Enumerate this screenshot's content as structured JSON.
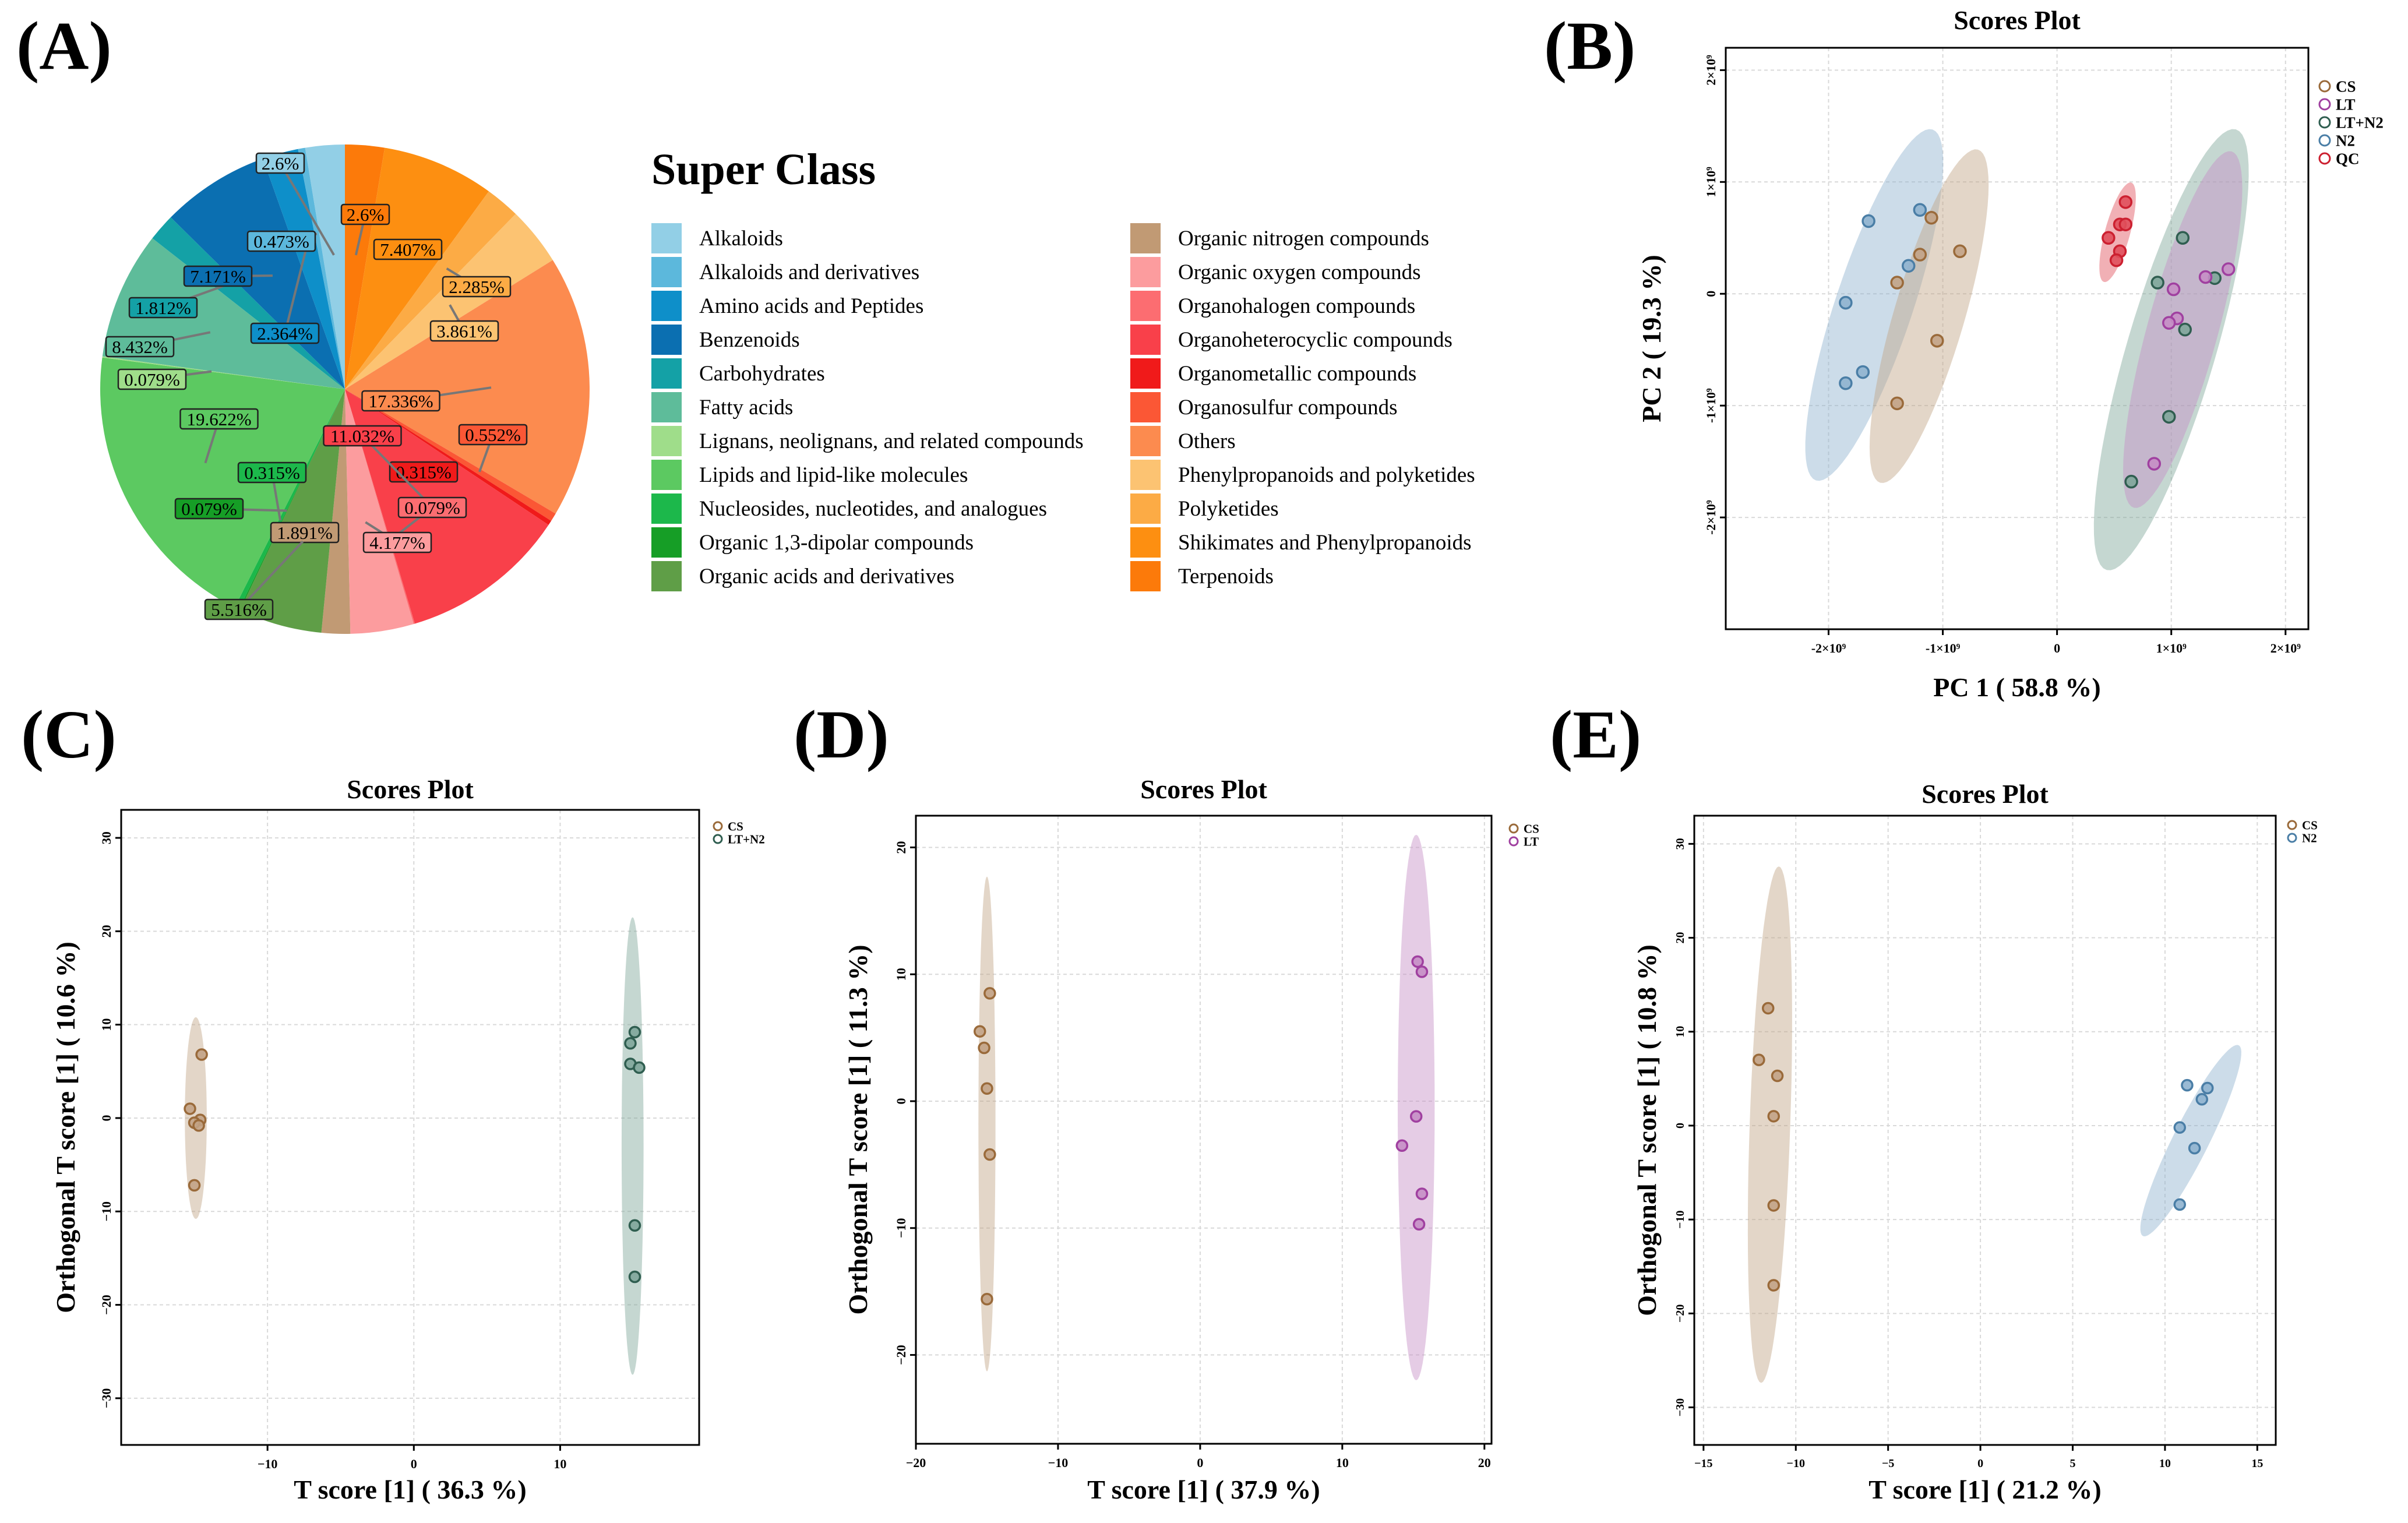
{
  "panel_labels": [
    "(A)",
    "(B)",
    "(C)",
    "(D)",
    "(E)"
  ],
  "colors": {
    "Alkaloids": "#92cfe6",
    "Alkaloids and derivatives": "#5cb8dc",
    "Amino acids and Peptides": "#0e8fc9",
    "Benzenoids": "#0b6fb1",
    "Carbohydrates": "#14a1a6",
    "Fatty acids": "#5ebc9a",
    "Lignans, neolignans, and related compounds": "#9fdd8a",
    "Lipids and lipid-like molecules": "#5cc961",
    "Nucleosides, nucleotides, and analogues": "#1cb84b",
    "Organic 1,3-dipolar compounds": "#169e26",
    "Organic acids and derivatives": "#5f9e47",
    "Organic nitrogen compounds": "#c19a74",
    "Organic oxygen compounds": "#fc9c9e",
    "Organohalogen compounds": "#fc6d71",
    "Organoheterocyclic compounds": "#f9404a",
    "Organometallic compounds": "#f01a1a",
    "Organosulfur compounds": "#fb5735",
    "Others": "#fc8b4f",
    "Phenylpropanoids and polyketides": "#fcc372",
    "Polyketides": "#fcab45",
    "Shikimates and Phenylpropanoids": "#fd8f11",
    "Terpenoids": "#fc7a0a",
    "CS": "#c2a386",
    "LT": "#c58ec5",
    "LT+N2": "#7ea69a",
    "N2": "#8fb2cf",
    "QC": "#e0505c",
    "CS_edge": "#9a6a3a",
    "LT_edge": "#a040a0",
    "LT+N2_edge": "#2f5e50",
    "N2_edge": "#4a7ea6",
    "QC_edge": "#cc2030"
  },
  "chart_data": [
    {
      "panel": "(A)",
      "type": "pie",
      "legend_title": "Super Class",
      "categories": [
        "Alkaloids",
        "Alkaloids and derivatives",
        "Amino acids and Peptides",
        "Benzenoids",
        "Carbohydrates",
        "Fatty acids",
        "Lignans, neolignans, and related compounds",
        "Lipids and lipid-like molecules",
        "Nucleosides, nucleotides, and analogues",
        "Organic 1,3-dipolar compounds",
        "Organic acids and derivatives",
        "Organic nitrogen compounds",
        "Organic oxygen compounds",
        "Organohalogen compounds",
        "Organoheterocyclic compounds",
        "Organometallic compounds",
        "Organosulfur compounds",
        "Others",
        "Phenylpropanoids and polyketides",
        "Polyketides",
        "Shikimates and Phenylpropanoids",
        "Terpenoids"
      ],
      "slices": [
        {
          "category": "Terpenoids",
          "value": 2.6,
          "label": "2.6%"
        },
        {
          "category": "Shikimates and Phenylpropanoids",
          "value": 7.407,
          "label": "7.407%"
        },
        {
          "category": "Polyketides",
          "value": 2.285,
          "label": "2.285%"
        },
        {
          "category": "Phenylpropanoids and polyketides",
          "value": 3.861,
          "label": "3.861%"
        },
        {
          "category": "Others",
          "value": 17.336,
          "label": "17.336%"
        },
        {
          "category": "Organosulfur compounds",
          "value": 0.552,
          "label": "0.552%"
        },
        {
          "category": "Organometallic compounds",
          "value": 0.315,
          "label": "0.315%"
        },
        {
          "category": "Organoheterocyclic compounds",
          "value": 11.032,
          "label": "11.032%"
        },
        {
          "category": "Organohalogen compounds",
          "value": 0.079,
          "label": "0.079%"
        },
        {
          "category": "Organic oxygen compounds",
          "value": 4.177,
          "label": "4.177%"
        },
        {
          "category": "Organic nitrogen compounds",
          "value": 1.891,
          "label": "1.891%"
        },
        {
          "category": "Organic acids and derivatives",
          "value": 5.516,
          "label": "5.516%"
        },
        {
          "category": "Organic 1,3-dipolar compounds",
          "value": 0.079,
          "label": "0.079%"
        },
        {
          "category": "Nucleosides, nucleotides, and analogues",
          "value": 0.315,
          "label": "0.315%"
        },
        {
          "category": "Lipids and lipid-like molecules",
          "value": 19.622,
          "label": "19.622%"
        },
        {
          "category": "Lignans, neolignans, and related compounds",
          "value": 0.079,
          "label": "0.079%"
        },
        {
          "category": "Fatty acids",
          "value": 8.432,
          "label": "8.432%"
        },
        {
          "category": "Carbohydrates",
          "value": 1.812,
          "label": "1.812%"
        },
        {
          "category": "Benzenoids",
          "value": 7.171,
          "label": "7.171%"
        },
        {
          "category": "Amino acids and Peptides",
          "value": 2.364,
          "label": "2.364%"
        },
        {
          "category": "Alkaloids and derivatives",
          "value": 0.473,
          "label": "0.473%"
        },
        {
          "category": "Alkaloids",
          "value": 2.6,
          "label": "2.6%"
        }
      ]
    },
    {
      "panel": "(B)",
      "type": "scatter",
      "title": "Scores Plot",
      "xlabel": "PC 1 ( 58.8 %)",
      "ylabel": "PC 2 ( 19.3 %)",
      "xlim": [
        -2.9,
        2.2
      ],
      "ylim": [
        -3.0,
        2.2
      ],
      "x_ticks": [
        {
          "v": -2,
          "label": "-2×10⁹"
        },
        {
          "v": -1,
          "label": "-1×10⁹"
        },
        {
          "v": 0,
          "label": "0"
        },
        {
          "v": 1,
          "label": "1×10⁹"
        },
        {
          "v": 2,
          "label": "2×10⁹"
        }
      ],
      "y_ticks": [
        {
          "v": -2,
          "label": "-2×10⁹"
        },
        {
          "v": -1,
          "label": "-1×10⁹"
        },
        {
          "v": 0,
          "label": "0"
        },
        {
          "v": 1,
          "label": "1×10⁹"
        },
        {
          "v": 2,
          "label": "2×10⁹"
        }
      ],
      "legend": [
        "CS",
        "LT",
        "LT+N2",
        "N2",
        "QC"
      ],
      "series": [
        {
          "name": "N2",
          "points": [
            [
              -1.65,
              0.65
            ],
            [
              -1.2,
              0.75
            ],
            [
              -1.3,
              0.25
            ],
            [
              -1.85,
              -0.08
            ],
            [
              -1.7,
              -0.7
            ],
            [
              -1.85,
              -0.8
            ]
          ],
          "ellipse": {
            "cx": -1.6,
            "cy": -0.1,
            "a": 1.65,
            "b": 0.34,
            "angle_deg": 72
          }
        },
        {
          "name": "CS",
          "points": [
            [
              -1.2,
              0.35
            ],
            [
              -1.1,
              0.68
            ],
            [
              -0.85,
              0.38
            ],
            [
              -1.4,
              0.1
            ],
            [
              -1.05,
              -0.42
            ],
            [
              -1.4,
              -0.98
            ]
          ],
          "ellipse": {
            "cx": -1.12,
            "cy": -0.2,
            "a": 1.55,
            "b": 0.31,
            "angle_deg": 74
          }
        },
        {
          "name": "QC",
          "points": [
            [
              0.6,
              0.82
            ],
            [
              0.55,
              0.62
            ],
            [
              0.6,
              0.62
            ],
            [
              0.45,
              0.5
            ],
            [
              0.55,
              0.38
            ],
            [
              0.52,
              0.3
            ]
          ],
          "ellipse": {
            "cx": 0.53,
            "cy": 0.55,
            "a": 0.46,
            "b": 0.11,
            "angle_deg": 75
          }
        },
        {
          "name": "LT+N2",
          "points": [
            [
              1.1,
              0.5
            ],
            [
              0.88,
              0.1
            ],
            [
              1.38,
              0.14
            ],
            [
              1.12,
              -0.32
            ],
            [
              0.98,
              -1.1
            ],
            [
              0.65,
              -1.68
            ]
          ],
          "ellipse": {
            "cx": 1.0,
            "cy": -0.5,
            "a": 2.05,
            "b": 0.39,
            "angle_deg": 74
          }
        },
        {
          "name": "LT",
          "points": [
            [
              1.5,
              0.22
            ],
            [
              1.3,
              0.15
            ],
            [
              1.02,
              0.04
            ],
            [
              1.05,
              -0.22
            ],
            [
              0.98,
              -0.26
            ],
            [
              0.85,
              -1.52
            ]
          ],
          "ellipse": {
            "cx": 1.1,
            "cy": -0.32,
            "a": 1.65,
            "b": 0.31,
            "angle_deg": 75
          }
        }
      ]
    },
    {
      "panel": "(C)",
      "type": "scatter",
      "title": "Scores Plot",
      "xlabel": "T score [1] ( 36.3 %)",
      "ylabel": "Orthogonal T score [1] ( 10.6 %)",
      "xlim": [
        -20,
        19.5
      ],
      "ylim": [
        -35,
        33
      ],
      "x_ticks": [
        {
          "v": -10,
          "label": "−10"
        },
        {
          "v": 0,
          "label": "0"
        },
        {
          "v": 10,
          "label": "10"
        }
      ],
      "y_ticks": [
        {
          "v": -30,
          "label": "−30"
        },
        {
          "v": -20,
          "label": "−20"
        },
        {
          "v": -10,
          "label": "−10"
        },
        {
          "v": 0,
          "label": "0"
        },
        {
          "v": 10,
          "label": "10"
        },
        {
          "v": 20,
          "label": "20"
        },
        {
          "v": 30,
          "label": "30"
        }
      ],
      "legend": [
        "CS",
        "LT+N2"
      ],
      "series": [
        {
          "name": "CS",
          "points": [
            [
              -14.5,
              6.8
            ],
            [
              -15.3,
              1.0
            ],
            [
              -14.6,
              -0.2
            ],
            [
              -15.0,
              -0.5
            ],
            [
              -14.7,
              -0.8
            ],
            [
              -15.0,
              -7.2
            ]
          ],
          "ellipse": {
            "cx": -14.9,
            "cy": 0,
            "a": 10.8,
            "b": 0.75,
            "angle_deg": 90
          }
        },
        {
          "name": "LT+N2",
          "points": [
            [
              15.1,
              9.2
            ],
            [
              14.8,
              8.0
            ],
            [
              14.8,
              5.8
            ],
            [
              15.4,
              5.4
            ],
            [
              15.1,
              -11.5
            ],
            [
              15.1,
              -17.0
            ]
          ],
          "ellipse": {
            "cx": 14.95,
            "cy": -3,
            "a": 24.5,
            "b": 0.75,
            "angle_deg": 90
          }
        }
      ]
    },
    {
      "panel": "(D)",
      "type": "scatter",
      "title": "Scores Plot",
      "xlabel": "T score [1] ( 37.9 %)",
      "ylabel": "Orthogonal T score [1] ( 11.3 %)",
      "xlim": [
        -20,
        20.5
      ],
      "ylim": [
        -27,
        22.5
      ],
      "x_ticks": [
        {
          "v": -20,
          "label": "−20"
        },
        {
          "v": -10,
          "label": "−10"
        },
        {
          "v": 0,
          "label": "0"
        },
        {
          "v": 10,
          "label": "10"
        },
        {
          "v": 20,
          "label": "20"
        }
      ],
      "y_ticks": [
        {
          "v": -20,
          "label": "−20"
        },
        {
          "v": -10,
          "label": "−10"
        },
        {
          "v": 0,
          "label": "0"
        },
        {
          "v": 10,
          "label": "10"
        },
        {
          "v": 20,
          "label": "20"
        }
      ],
      "legend": [
        "CS",
        "LT"
      ],
      "series": [
        {
          "name": "CS",
          "points": [
            [
              -14.8,
              8.5
            ],
            [
              -15.5,
              5.5
            ],
            [
              -15.2,
              4.2
            ],
            [
              -15.0,
              1.0
            ],
            [
              -14.8,
              -4.2
            ],
            [
              -15.0,
              -15.6
            ]
          ],
          "ellipse": {
            "cx": -15.0,
            "cy": -1.8,
            "a": 19.5,
            "b": 0.6,
            "angle_deg": 90
          }
        },
        {
          "name": "LT",
          "points": [
            [
              15.3,
              11.0
            ],
            [
              15.6,
              10.2
            ],
            [
              15.2,
              -1.2
            ],
            [
              14.2,
              -3.5
            ],
            [
              15.6,
              -7.3
            ],
            [
              15.4,
              -9.7
            ]
          ],
          "ellipse": {
            "cx": 15.2,
            "cy": -0.5,
            "a": 21.5,
            "b": 1.3,
            "angle_deg": 90
          }
        }
      ]
    },
    {
      "panel": "(E)",
      "type": "scatter",
      "title": "Scores Plot",
      "xlabel": "T score [1] ( 21.2 %)",
      "ylabel": "Orthogonal T score [1] ( 10.8 %)",
      "xlim": [
        -15.5,
        16
      ],
      "ylim": [
        -34,
        33
      ],
      "x_ticks": [
        {
          "v": -15,
          "label": "−15"
        },
        {
          "v": -10,
          "label": "−10"
        },
        {
          "v": -5,
          "label": "−5"
        },
        {
          "v": 0,
          "label": "0"
        },
        {
          "v": 5,
          "label": "5"
        },
        {
          "v": 10,
          "label": "10"
        },
        {
          "v": 15,
          "label": "15"
        }
      ],
      "y_ticks": [
        {
          "v": -30,
          "label": "−30"
        },
        {
          "v": -20,
          "label": "−20"
        },
        {
          "v": -10,
          "label": "−10"
        },
        {
          "v": 0,
          "label": "0"
        },
        {
          "v": 10,
          "label": "10"
        },
        {
          "v": 20,
          "label": "20"
        },
        {
          "v": 30,
          "label": "30"
        }
      ],
      "legend": [
        "CS",
        "N2"
      ],
      "series": [
        {
          "name": "CS",
          "points": [
            [
              -11.5,
              12.5
            ],
            [
              -12.0,
              7.0
            ],
            [
              -11.0,
              5.3
            ],
            [
              -11.2,
              1.0
            ],
            [
              -11.2,
              -8.5
            ],
            [
              -11.2,
              -17.0
            ]
          ],
          "ellipse": {
            "cx": -11.4,
            "cy": 0.1,
            "a": 27.5,
            "b": 1.1,
            "angle_deg": 89
          }
        },
        {
          "name": "N2",
          "points": [
            [
              11.2,
              4.3
            ],
            [
              12.3,
              4.0
            ],
            [
              12.0,
              2.8
            ],
            [
              10.8,
              -0.2
            ],
            [
              11.6,
              -2.4
            ],
            [
              10.8,
              -8.4
            ]
          ],
          "ellipse": {
            "cx": 11.4,
            "cy": -1.6,
            "a": 10.5,
            "b": 1.05,
            "angle_deg": 76
          }
        }
      ]
    }
  ]
}
